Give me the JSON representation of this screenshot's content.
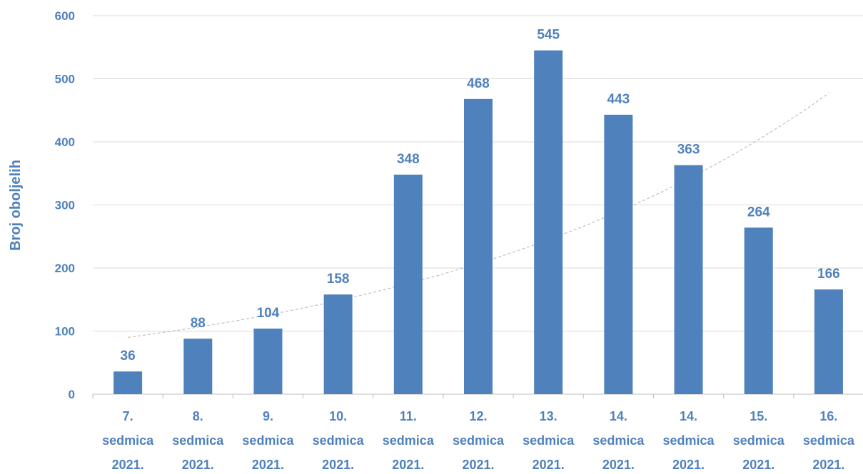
{
  "chart_data": {
    "type": "bar",
    "title": "",
    "xlabel": "",
    "ylabel": "Broj oboljelih",
    "ylim": [
      0,
      600
    ],
    "yticks": [
      0,
      100,
      200,
      300,
      400,
      500,
      600
    ],
    "grid": true,
    "legend": "none",
    "categories": [
      [
        "7.",
        "sedmica",
        "2021."
      ],
      [
        "8.",
        "sedmica",
        "2021."
      ],
      [
        "9.",
        "sedmica",
        "2021."
      ],
      [
        "10.",
        "sedmica",
        "2021."
      ],
      [
        "11.",
        "sedmica",
        "2021."
      ],
      [
        "12.",
        "sedmica",
        "2021."
      ],
      [
        "13.",
        "sedmica",
        "2021."
      ],
      [
        "14.",
        "sedmica",
        "2021."
      ],
      [
        "14.",
        "sedmica",
        "2021."
      ],
      [
        "15.",
        "sedmica",
        "2021."
      ],
      [
        "16.",
        "sedmica",
        "2021."
      ]
    ],
    "values": [
      36,
      88,
      104,
      158,
      348,
      468,
      545,
      443,
      363,
      264,
      166
    ],
    "data_labels": [
      "36",
      "88",
      "104",
      "158",
      "348",
      "468",
      "545",
      "443",
      "363",
      "264",
      "166"
    ],
    "trendline": {
      "type": "exponential",
      "start_value": 90,
      "end_value": 477,
      "style": "dashed"
    },
    "colors": {
      "bar": "#4f81bd",
      "text": "#4f81bd",
      "grid": "#d9d9d9",
      "axis": "#bfbfbf",
      "trend": "#bfbfbf"
    }
  }
}
